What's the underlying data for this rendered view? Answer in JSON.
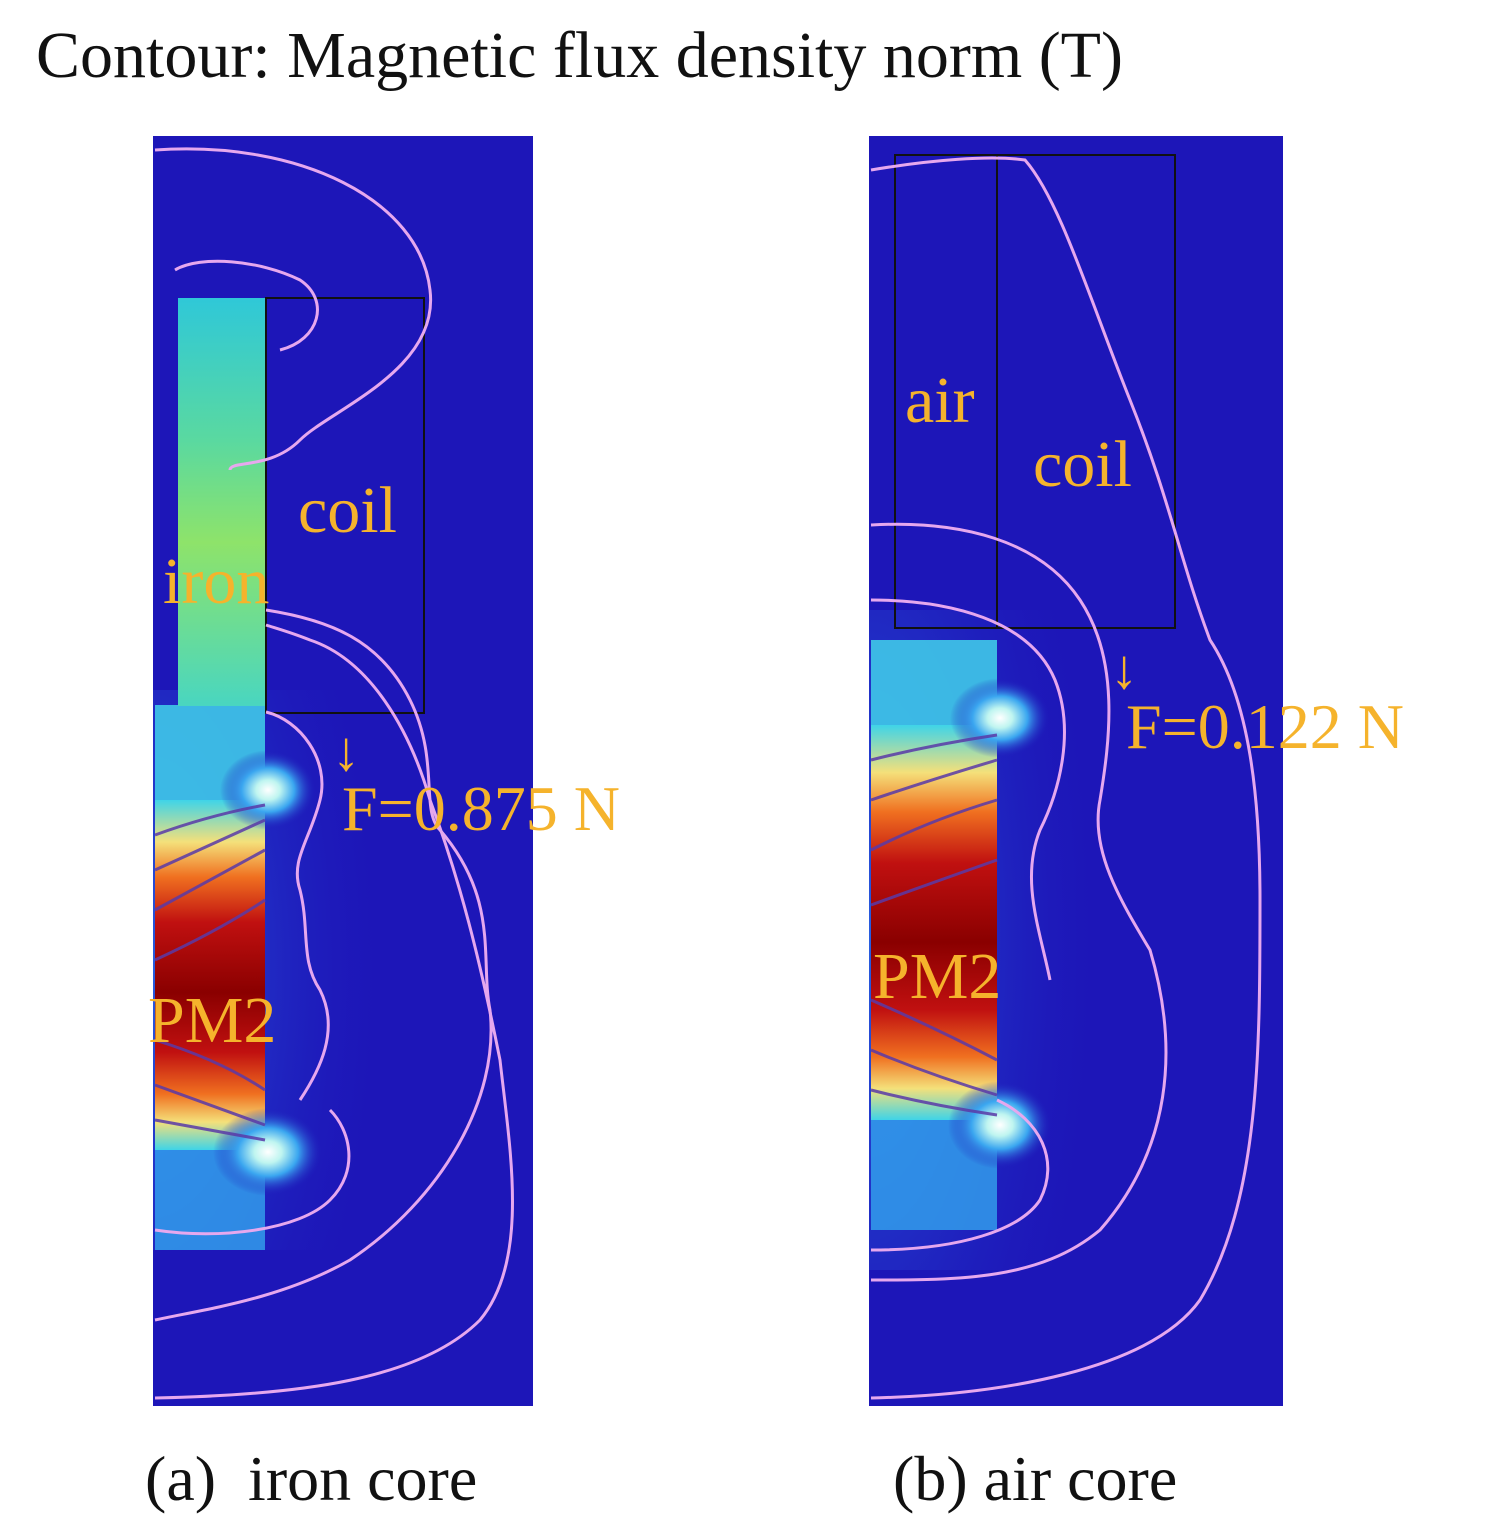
{
  "title": "Contour: Magnetic flux density norm (T)",
  "colors": {
    "background_field": "#1d16b8",
    "contour_line": "#e6a8ee",
    "label": "#f5b32c",
    "magnet_red": "#c01010",
    "iron_green": "#6fe08a"
  },
  "panels": [
    {
      "id": "a",
      "caption": "(a)  iron core",
      "labels": {
        "iron": "iron",
        "coil": "coil",
        "magnet": "PM2"
      },
      "force": {
        "arrow": "↓",
        "text": "F=0.875 N"
      }
    },
    {
      "id": "b",
      "caption": "(b) air core",
      "labels": {
        "air": "air",
        "coil": "coil",
        "magnet": "PM2"
      },
      "force": {
        "arrow": "↓",
        "text": "F=0.122 N"
      }
    }
  ]
}
